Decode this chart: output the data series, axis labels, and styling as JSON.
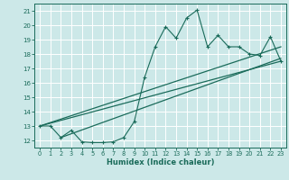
{
  "xlabel": "Humidex (Indice chaleur)",
  "bg_color": "#cce8e8",
  "grid_color": "#ffffff",
  "line_color": "#1a6b5a",
  "xlim": [
    -0.5,
    23.5
  ],
  "ylim": [
    11.5,
    21.5
  ],
  "xticks": [
    0,
    1,
    2,
    3,
    4,
    5,
    6,
    7,
    8,
    9,
    10,
    11,
    12,
    13,
    14,
    15,
    16,
    17,
    18,
    19,
    20,
    21,
    22,
    23
  ],
  "yticks": [
    12,
    13,
    14,
    15,
    16,
    17,
    18,
    19,
    20,
    21
  ],
  "data_line": [
    [
      0,
      13.0
    ],
    [
      1,
      13.0
    ],
    [
      2,
      12.2
    ],
    [
      3,
      12.7
    ],
    [
      4,
      11.9
    ],
    [
      5,
      11.85
    ],
    [
      6,
      11.85
    ],
    [
      7,
      11.9
    ],
    [
      8,
      12.2
    ],
    [
      9,
      13.3
    ],
    [
      10,
      16.4
    ],
    [
      11,
      18.5
    ],
    [
      12,
      19.9
    ],
    [
      13,
      19.1
    ],
    [
      14,
      20.5
    ],
    [
      15,
      21.05
    ],
    [
      16,
      18.5
    ],
    [
      17,
      19.3
    ],
    [
      18,
      18.5
    ],
    [
      19,
      18.5
    ],
    [
      20,
      18.0
    ],
    [
      21,
      17.9
    ],
    [
      22,
      19.2
    ],
    [
      23,
      17.5
    ]
  ],
  "reg_line1": [
    [
      0,
      13.0
    ],
    [
      23,
      17.5
    ]
  ],
  "reg_line2": [
    [
      0,
      13.0
    ],
    [
      23,
      18.5
    ]
  ],
  "reg_line3": [
    [
      2,
      12.2
    ],
    [
      23,
      17.7
    ]
  ]
}
